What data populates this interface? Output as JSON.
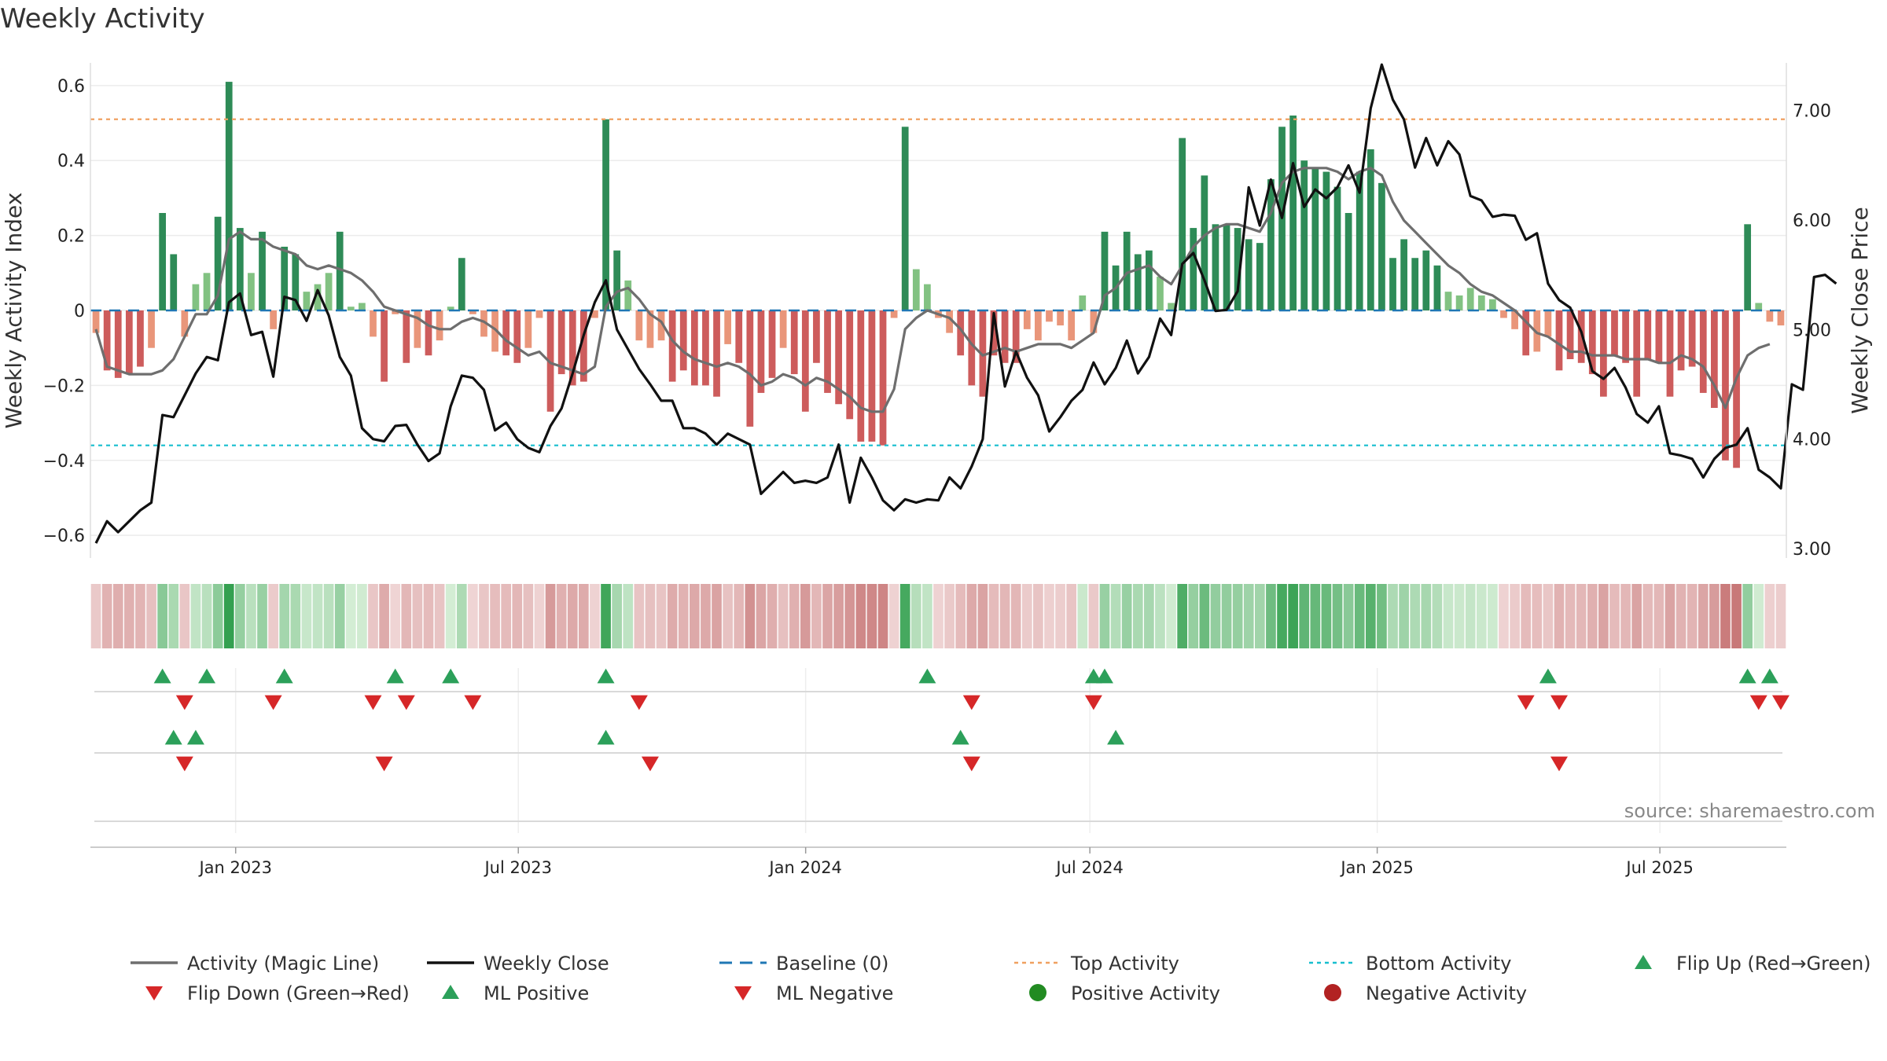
{
  "title": "Weekly Activity",
  "source": "source: sharemaestro.com",
  "colors": {
    "strong_green": "#2e8b57",
    "light_green": "#82c282",
    "strong_red": "#cd5c5c",
    "light_red": "#e9967a",
    "magic_line": "#6e6e6e",
    "close_line": "#111111",
    "baseline": "#1f77b4",
    "top_line": "#f0a060",
    "bottom_line": "#17becf",
    "marker_up": "#2ca05a",
    "marker_down": "#d62728",
    "pos_dot": "#228b22",
    "neg_dot": "#b22222"
  },
  "chart_data": {
    "type": "bar",
    "title": "Weekly Activity",
    "ylabel_left": "Weekly Activity Index",
    "ylabel_right": "Weekly Close Price",
    "ylim_left": [
      -0.65,
      0.65
    ],
    "ylim_right": [
      2.95,
      7.4
    ],
    "left_ticks": [
      "0.6",
      "0.4",
      "0.2",
      "0",
      "−0.2",
      "−0.4",
      "−0.6"
    ],
    "left_tick_values": [
      0.6,
      0.4,
      0.2,
      0,
      -0.2,
      -0.4,
      -0.6
    ],
    "right_ticks": [
      "7.00",
      "6.00",
      "5.00",
      "4.00",
      "3.00"
    ],
    "right_tick_values": [
      7,
      6,
      5,
      4,
      3
    ],
    "x_range": [
      "2022-09-30",
      "2025-09-20"
    ],
    "x_ticks": [
      {
        "label": "Jan 2023",
        "date": "2023-01-01"
      },
      {
        "label": "Jul 2023",
        "date": "2023-07-01"
      },
      {
        "label": "Jan 2024",
        "date": "2024-01-01"
      },
      {
        "label": "Jul 2024",
        "date": "2024-07-01"
      },
      {
        "label": "Jan 2025",
        "date": "2025-01-01"
      },
      {
        "label": "Jul 2025",
        "date": "2025-07-01"
      }
    ],
    "top_activity": 0.51,
    "bottom_activity": -0.36,
    "baseline": 0,
    "grid": true,
    "activity": [
      -0.06,
      -0.16,
      -0.18,
      -0.17,
      -0.15,
      -0.1,
      0.26,
      0.15,
      -0.07,
      0.07,
      0.1,
      0.25,
      0.61,
      0.22,
      0.1,
      0.21,
      -0.05,
      0.17,
      0.15,
      0.05,
      0.07,
      0.1,
      0.21,
      0.01,
      0.02,
      -0.07,
      -0.19,
      -0.01,
      -0.14,
      -0.1,
      -0.12,
      -0.08,
      0.01,
      0.14,
      -0.01,
      -0.07,
      -0.11,
      -0.12,
      -0.14,
      -0.1,
      -0.02,
      -0.27,
      -0.17,
      -0.2,
      -0.19,
      -0.02,
      0.51,
      0.16,
      0.08,
      -0.08,
      -0.1,
      -0.08,
      -0.19,
      -0.16,
      -0.2,
      -0.2,
      -0.23,
      -0.09,
      -0.14,
      -0.31,
      -0.22,
      -0.18,
      -0.1,
      -0.17,
      -0.27,
      -0.14,
      -0.22,
      -0.25,
      -0.29,
      -0.35,
      -0.35,
      -0.36,
      -0.02,
      0.49,
      0.11,
      0.07,
      -0.02,
      -0.06,
      -0.12,
      -0.2,
      -0.23,
      -0.12,
      -0.14,
      -0.14,
      -0.05,
      -0.08,
      -0.03,
      -0.04,
      -0.08,
      0.04,
      -0.06,
      0.21,
      0.12,
      0.21,
      0.15,
      0.16,
      0.09,
      0.02,
      0.46,
      0.22,
      0.36,
      0.23,
      0.23,
      0.22,
      0.19,
      0.18,
      0.35,
      0.49,
      0.52,
      0.4,
      0.38,
      0.37,
      0.33,
      0.26,
      0.37,
      0.43,
      0.34,
      0.14,
      0.19,
      0.14,
      0.16,
      0.12,
      0.05,
      0.04,
      0.06,
      0.04,
      0.03,
      -0.02,
      -0.05,
      -0.12,
      -0.11,
      -0.07,
      -0.16,
      -0.13,
      -0.14,
      -0.17,
      -0.23,
      -0.12,
      -0.14,
      -0.23,
      -0.13,
      -0.14,
      -0.23,
      -0.16,
      -0.15,
      -0.22,
      -0.26,
      -0.4,
      -0.42,
      0.23,
      0.02,
      -0.03,
      -0.04
    ],
    "magic_line": [
      -0.05,
      -0.15,
      -0.16,
      -0.17,
      -0.17,
      -0.17,
      -0.16,
      -0.13,
      -0.07,
      -0.01,
      -0.01,
      0.04,
      0.19,
      0.21,
      0.19,
      0.19,
      0.17,
      0.16,
      0.15,
      0.12,
      0.11,
      0.12,
      0.11,
      0.1,
      0.08,
      0.05,
      0.01,
      0.0,
      -0.01,
      -0.02,
      -0.04,
      -0.05,
      -0.05,
      -0.03,
      -0.02,
      -0.03,
      -0.05,
      -0.08,
      -0.1,
      -0.12,
      -0.11,
      -0.14,
      -0.15,
      -0.16,
      -0.17,
      -0.15,
      0.01,
      0.05,
      0.06,
      0.03,
      -0.01,
      -0.03,
      -0.08,
      -0.11,
      -0.13,
      -0.14,
      -0.15,
      -0.14,
      -0.15,
      -0.17,
      -0.2,
      -0.19,
      -0.17,
      -0.18,
      -0.2,
      -0.18,
      -0.19,
      -0.21,
      -0.23,
      -0.26,
      -0.27,
      -0.27,
      -0.21,
      -0.05,
      -0.02,
      0.0,
      -0.01,
      -0.02,
      -0.05,
      -0.09,
      -0.12,
      -0.11,
      -0.1,
      -0.11,
      -0.1,
      -0.09,
      -0.09,
      -0.09,
      -0.1,
      -0.08,
      -0.06,
      0.04,
      0.06,
      0.1,
      0.11,
      0.12,
      0.09,
      0.07,
      0.12,
      0.17,
      0.2,
      0.22,
      0.23,
      0.23,
      0.22,
      0.21,
      0.26,
      0.34,
      0.37,
      0.38,
      0.38,
      0.38,
      0.37,
      0.35,
      0.37,
      0.38,
      0.36,
      0.29,
      0.24,
      0.21,
      0.18,
      0.15,
      0.12,
      0.1,
      0.07,
      0.05,
      0.04,
      0.02,
      0.0,
      -0.03,
      -0.06,
      -0.07,
      -0.09,
      -0.11,
      -0.11,
      -0.12,
      -0.12,
      -0.12,
      -0.13,
      -0.13,
      -0.13,
      -0.14,
      -0.14,
      -0.12,
      -0.13,
      -0.15,
      -0.2,
      -0.26,
      -0.18,
      -0.12,
      -0.1,
      -0.09
    ],
    "weekly_close": [
      3.05,
      3.25,
      3.15,
      3.25,
      3.35,
      3.42,
      4.22,
      4.2,
      4.4,
      4.6,
      4.75,
      4.72,
      5.25,
      5.33,
      4.95,
      4.98,
      4.57,
      5.3,
      5.27,
      5.08,
      5.36,
      5.13,
      4.75,
      4.58,
      4.1,
      4.0,
      3.98,
      4.12,
      4.13,
      3.95,
      3.8,
      3.87,
      4.3,
      4.58,
      4.56,
      4.45,
      4.08,
      4.15,
      4.0,
      3.92,
      3.88,
      4.12,
      4.28,
      4.6,
      4.95,
      5.25,
      5.45,
      5.0,
      4.82,
      4.64,
      4.5,
      4.35,
      4.35,
      4.1,
      4.1,
      4.05,
      3.95,
      4.05,
      4.0,
      3.95,
      3.5,
      3.6,
      3.7,
      3.6,
      3.62,
      3.6,
      3.65,
      3.95,
      3.42,
      3.83,
      3.65,
      3.44,
      3.35,
      3.45,
      3.42,
      3.45,
      3.44,
      3.65,
      3.55,
      3.75,
      4.0,
      5.15,
      4.48,
      4.8,
      4.56,
      4.4,
      4.07,
      4.2,
      4.35,
      4.45,
      4.7,
      4.5,
      4.65,
      4.9,
      4.6,
      4.75,
      5.1,
      4.95,
      5.6,
      5.7,
      5.45,
      5.17,
      5.18,
      5.35,
      6.3,
      5.95,
      6.37,
      6.02,
      6.52,
      6.12,
      6.28,
      6.2,
      6.3,
      6.5,
      6.25,
      7.02,
      7.42,
      7.1,
      6.92,
      6.48,
      6.75,
      6.5,
      6.72,
      6.6,
      6.22,
      6.18,
      6.03,
      6.05,
      6.04,
      5.82,
      5.88,
      5.42,
      5.27,
      5.2,
      4.98,
      4.62,
      4.55,
      4.65,
      4.47,
      4.23,
      4.15,
      4.3,
      3.87,
      3.85,
      3.82,
      3.65,
      3.82,
      3.92,
      3.95,
      4.1,
      3.72,
      3.65,
      3.55,
      4.5,
      4.45,
      5.48,
      5.5,
      5.42
    ],
    "flip_up": [
      6,
      10,
      17,
      27,
      32,
      46,
      75,
      90,
      91,
      131,
      149,
      151
    ],
    "flip_down": [
      8,
      16,
      25,
      28,
      34,
      49,
      79,
      90,
      129,
      132,
      150,
      152
    ],
    "ml_positive": [
      7,
      9,
      46,
      78,
      92
    ],
    "ml_negative": [
      8,
      26,
      50,
      79,
      132
    ]
  },
  "x_tick_labels": [
    "Jan 2023",
    "Jul 2023",
    "Jan 2024",
    "Jul 2024",
    "Jan 2025",
    "Jul 2025"
  ],
  "legend": [
    {
      "label": "Activity (Magic Line)",
      "icon": "solid-line"
    },
    {
      "label": "Weekly Close",
      "icon": "solid-line"
    },
    {
      "label": "Baseline (0)",
      "icon": "dashed-line"
    },
    {
      "label": "Top Activity",
      "icon": "dotted-line"
    },
    {
      "label": "Bottom Activity",
      "icon": "dotted-line"
    },
    {
      "label": "Flip Up (Red→Green)",
      "icon": "triangle-up"
    },
    {
      "label": "Flip Down (Green→Red)",
      "icon": "triangle-down"
    },
    {
      "label": "ML Positive",
      "icon": "triangle-up"
    },
    {
      "label": "ML Negative",
      "icon": "triangle-down"
    },
    {
      "label": "Positive Activity",
      "icon": "circle"
    },
    {
      "label": "Negative Activity",
      "icon": "circle"
    }
  ]
}
